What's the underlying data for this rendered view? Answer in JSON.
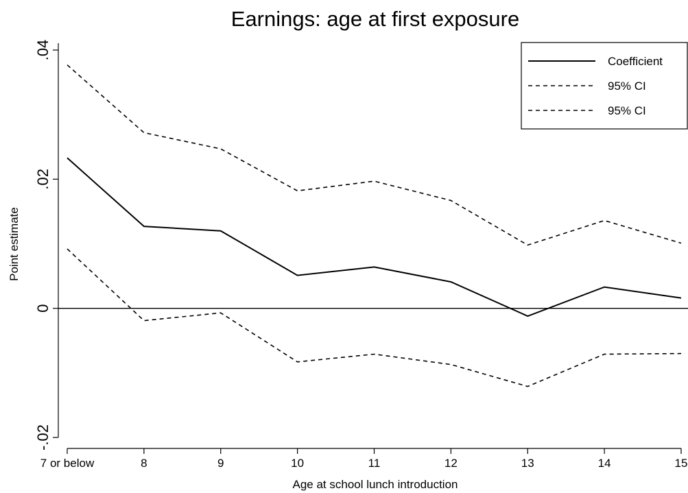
{
  "chart_data": {
    "type": "line",
    "title": "Earnings: age at first exposure",
    "xlabel": "Age at school lunch introduction",
    "ylabel": "Point estimate",
    "categories": [
      "7 or below",
      "8",
      "9",
      "10",
      "11",
      "12",
      "13",
      "14",
      "15"
    ],
    "ylim": [
      -0.02,
      0.04
    ],
    "yticks": [
      -0.02,
      0,
      0.02,
      0.04
    ],
    "ytick_labels": [
      "-.02",
      "0",
      ".02",
      ".04"
    ],
    "reference_line_y": 0,
    "grid": false,
    "legend_position": "top-right",
    "series": [
      {
        "name": "Coefficient",
        "style": "solid",
        "values": [
          0.0233,
          0.0127,
          0.012,
          0.0051,
          0.0064,
          0.0041,
          -0.0012,
          0.0033,
          0.0016
        ]
      },
      {
        "name": "95% CI",
        "style": "dashed",
        "values": [
          0.0377,
          0.0272,
          0.0247,
          0.0182,
          0.0197,
          0.0167,
          0.0098,
          0.0136,
          0.0101
        ]
      },
      {
        "name": "95% CI",
        "style": "dashed",
        "values": [
          0.0092,
          -0.0019,
          -0.0007,
          -0.0083,
          -0.0071,
          -0.0087,
          -0.0121,
          -0.0071,
          -0.007
        ]
      }
    ],
    "colors": {
      "line": "#000000",
      "background": "#ffffff"
    }
  }
}
